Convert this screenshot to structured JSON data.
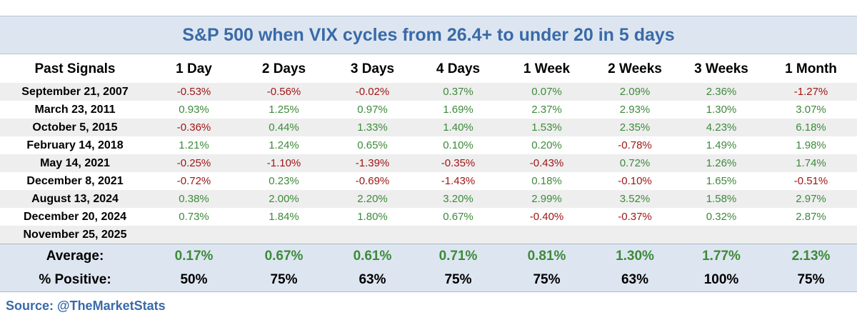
{
  "chart_data": {
    "type": "table",
    "title": "S&P 500 when VIX cycles from 26.4+ to under 20 in 5 days",
    "columns": [
      "Past Signals",
      "1 Day",
      "2 Days",
      "3 Days",
      "4 Days",
      "1 Week",
      "2 Weeks",
      "3 Weeks",
      "1 Month"
    ],
    "rows": [
      {
        "date": "September 21, 2007",
        "values": [
          "-0.53%",
          "-0.56%",
          "-0.02%",
          "0.37%",
          "0.07%",
          "2.09%",
          "2.36%",
          "-1.27%"
        ]
      },
      {
        "date": "March 23, 2011",
        "values": [
          "0.93%",
          "1.25%",
          "0.97%",
          "1.69%",
          "2.37%",
          "2.93%",
          "1.30%",
          "3.07%"
        ]
      },
      {
        "date": "October 5, 2015",
        "values": [
          "-0.36%",
          "0.44%",
          "1.33%",
          "1.40%",
          "1.53%",
          "2.35%",
          "4.23%",
          "6.18%"
        ]
      },
      {
        "date": "February 14, 2018",
        "values": [
          "1.21%",
          "1.24%",
          "0.65%",
          "0.10%",
          "0.20%",
          "-0.78%",
          "1.49%",
          "1.98%"
        ]
      },
      {
        "date": "May 14, 2021",
        "values": [
          "-0.25%",
          "-1.10%",
          "-1.39%",
          "-0.35%",
          "-0.43%",
          "0.72%",
          "1.26%",
          "1.74%"
        ]
      },
      {
        "date": "December 8, 2021",
        "values": [
          "-0.72%",
          "0.23%",
          "-0.69%",
          "-1.43%",
          "0.18%",
          "-0.10%",
          "1.65%",
          "-0.51%"
        ]
      },
      {
        "date": "August 13, 2024",
        "values": [
          "0.38%",
          "2.00%",
          "2.20%",
          "3.20%",
          "2.99%",
          "3.52%",
          "1.58%",
          "2.97%"
        ]
      },
      {
        "date": "December 20, 2024",
        "values": [
          "0.73%",
          "1.84%",
          "1.80%",
          "0.67%",
          "-0.40%",
          "-0.37%",
          "0.32%",
          "2.87%"
        ]
      },
      {
        "date": "November 25, 2025",
        "values": [
          "",
          "",
          "",
          "",
          "",
          "",
          "",
          ""
        ]
      }
    ],
    "average": {
      "label": "Average:",
      "values": [
        "0.17%",
        "0.67%",
        "0.61%",
        "0.71%",
        "0.81%",
        "1.30%",
        "1.77%",
        "2.13%"
      ]
    },
    "positive": {
      "label": "% Positive:",
      "values": [
        "50%",
        "75%",
        "63%",
        "75%",
        "75%",
        "63%",
        "100%",
        "75%"
      ]
    }
  },
  "source": "Source: @TheMarketStats",
  "colors": {
    "positive": "#3d8a3a",
    "negative": "#a01616",
    "accent": "#3a6aa8",
    "header_bg": "#dde6f0",
    "row_shade": "#eeeeee"
  }
}
